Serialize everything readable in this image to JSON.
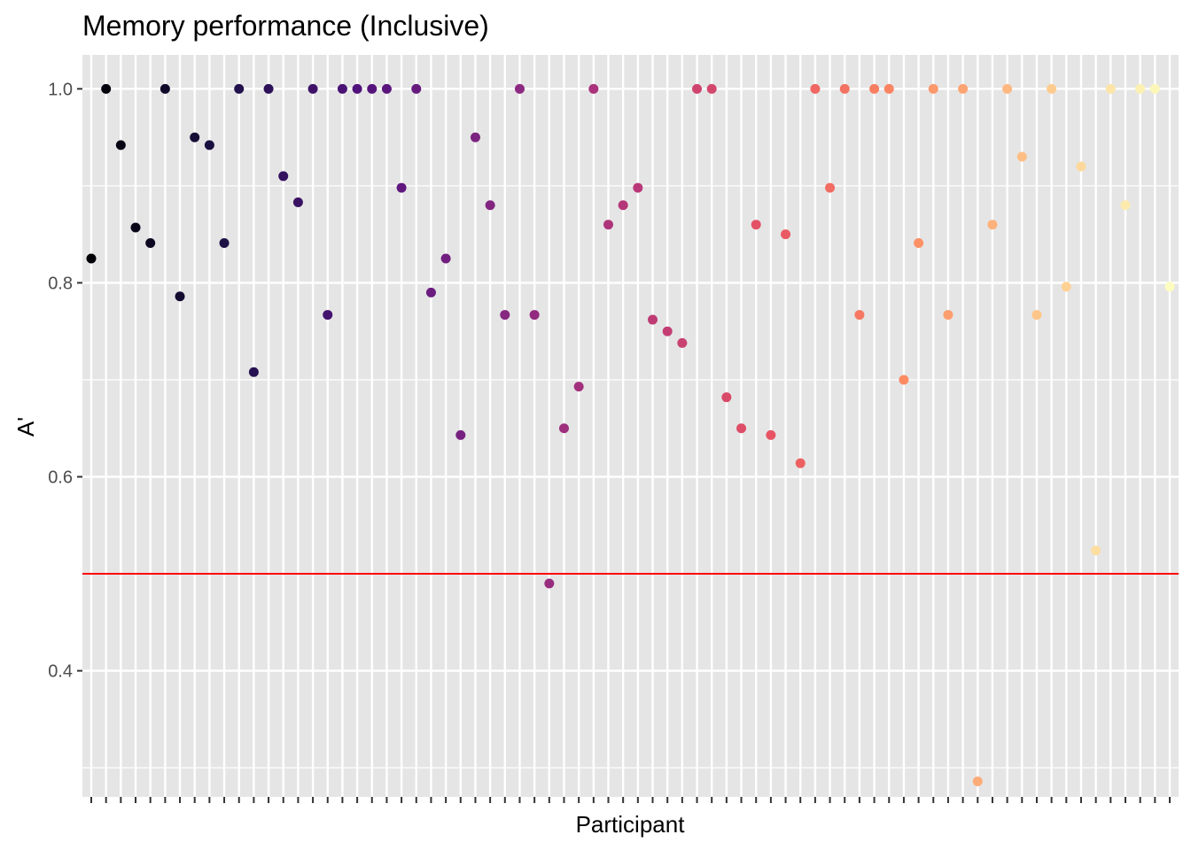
{
  "chart_data": {
    "type": "scatter",
    "title": "Memory performance (Inclusive)",
    "xlabel": "Participant",
    "ylabel": "A'",
    "x_tick_labels_shown": false,
    "ylim": [
      0.27,
      1.035
    ],
    "y_ticks": [
      0.4,
      0.6,
      0.8,
      1.0
    ],
    "y_tick_labels": [
      "0.4",
      "0.6",
      "0.8",
      "1.0"
    ],
    "y_minor_ticks": [
      0.3,
      0.5,
      0.7,
      0.9
    ],
    "grid": true,
    "panel_background": "#e5e5e5",
    "grid_color": "#ffffff",
    "reference_line": {
      "y": 0.5,
      "color": "#ff0000"
    },
    "colormap": "magma",
    "colormap_stops": [
      "#000004",
      "#1d1147",
      "#51127c",
      "#832681",
      "#b73779",
      "#e75263",
      "#fc8961",
      "#fec488",
      "#fcfdbf"
    ],
    "series": [
      {
        "x": [
          1,
          2,
          3,
          4,
          5,
          6,
          7,
          8,
          9,
          10,
          11,
          12,
          13,
          14,
          15,
          16,
          17,
          18,
          19,
          20,
          21,
          22,
          23,
          24,
          25,
          26,
          27,
          28,
          29,
          30,
          31,
          32,
          33,
          34,
          35,
          36,
          37,
          38,
          39,
          40,
          41,
          42,
          43,
          44,
          45,
          46,
          47,
          48,
          49,
          50,
          51,
          52,
          53,
          54,
          55,
          56,
          57,
          58,
          59,
          60,
          61,
          62,
          63,
          64,
          65,
          66,
          67,
          68,
          69,
          70,
          71,
          72,
          73,
          74
        ],
        "y": [
          0.825,
          1.0,
          0.942,
          0.857,
          0.841,
          1.0,
          0.786,
          0.95,
          0.942,
          0.841,
          1.0,
          0.708,
          1.0,
          0.91,
          0.883,
          1.0,
          0.767,
          1.0,
          1.0,
          1.0,
          1.0,
          0.898,
          1.0,
          0.79,
          0.825,
          0.643,
          0.95,
          0.88,
          0.767,
          1.0,
          0.767,
          0.49,
          0.65,
          0.693,
          1.0,
          0.86,
          0.88,
          0.898,
          0.762,
          0.75,
          0.738,
          1.0,
          1.0,
          0.682,
          0.65,
          0.86,
          0.643,
          0.85,
          0.614,
          1.0,
          0.898,
          1.0,
          0.767,
          1.0,
          1.0,
          0.7,
          0.841,
          1.0,
          0.767,
          1.0,
          0.286,
          0.86,
          1.0,
          0.93,
          0.767,
          1.0,
          0.796,
          0.92,
          0.524,
          1.0,
          0.88,
          1.0,
          1.0,
          0.796
        ]
      }
    ]
  }
}
